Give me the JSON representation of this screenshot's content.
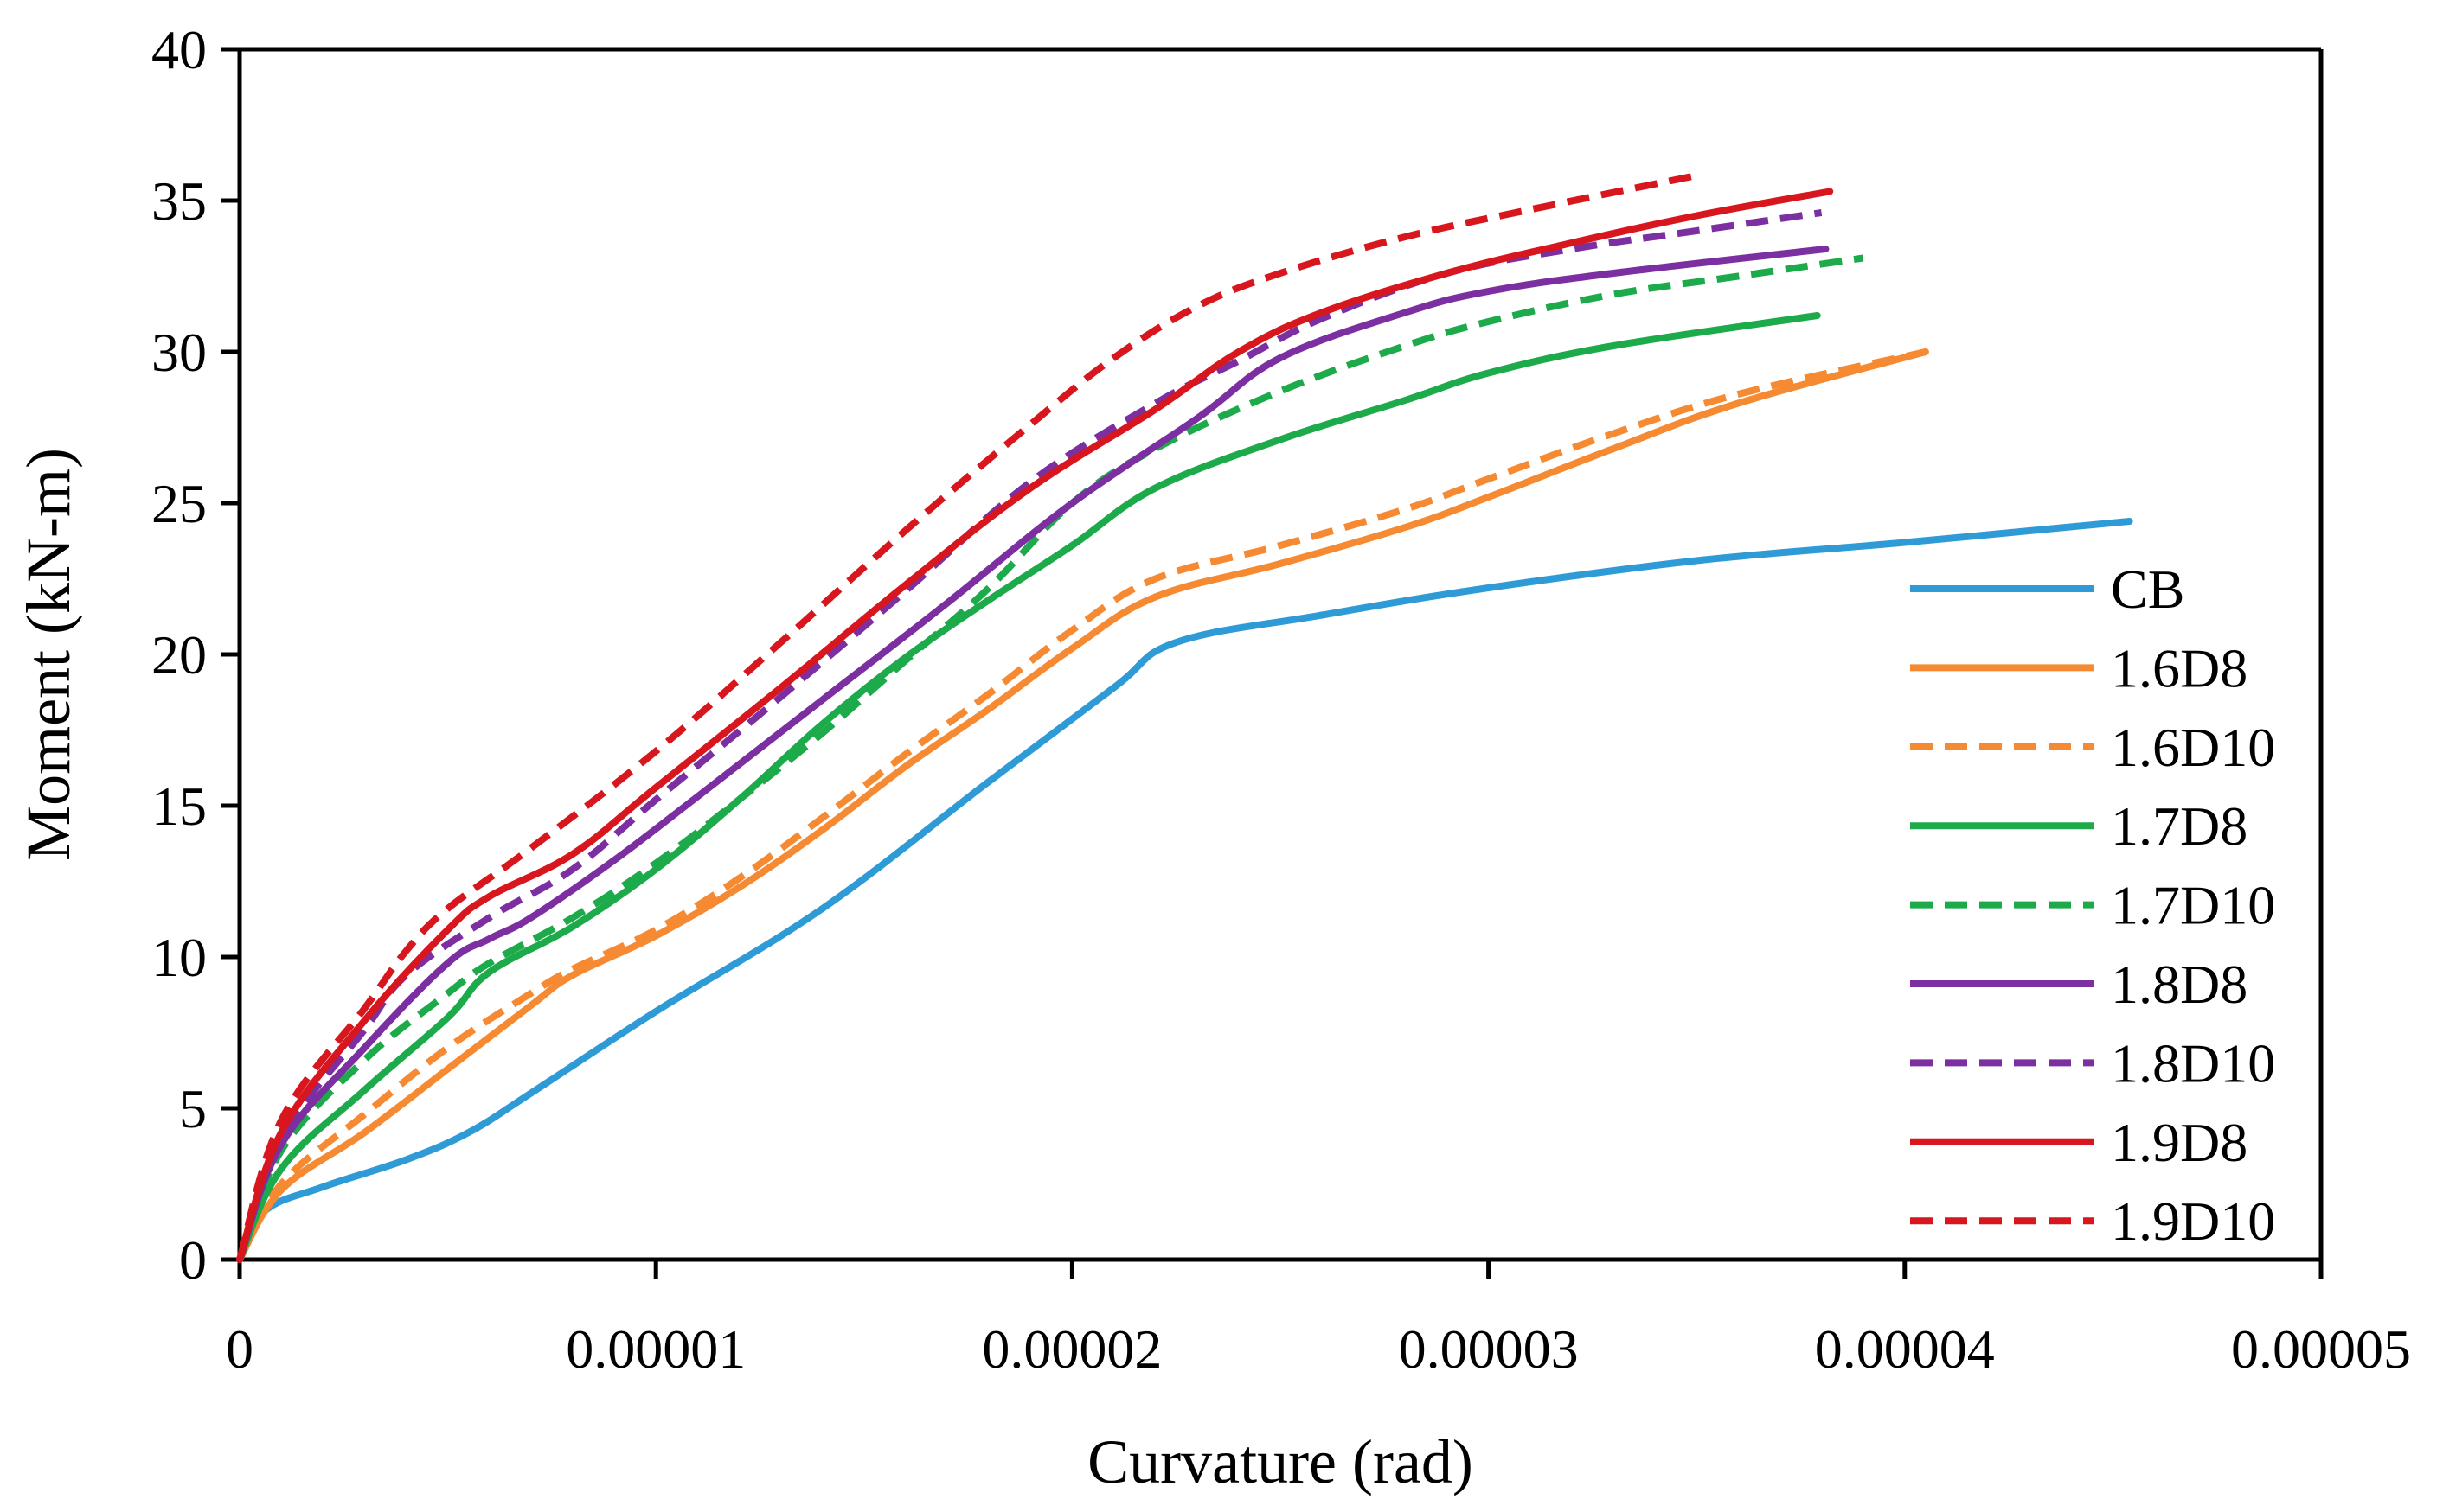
{
  "chart_data": {
    "type": "line",
    "title": "",
    "xlabel": "Curvature (rad)",
    "ylabel": "Moment (kN-m)",
    "xlim": [
      0,
      5e-05
    ],
    "ylim": [
      0,
      40
    ],
    "grid": false,
    "legend_position": "right",
    "x_ticks": [
      0,
      1e-05,
      2e-05,
      3e-05,
      4e-05,
      5e-05
    ],
    "x_tick_labels": [
      "0",
      "0.00001",
      "0.00002",
      "0.00003",
      "0.00004",
      "0.00005"
    ],
    "y_ticks": [
      0,
      5,
      10,
      15,
      20,
      25,
      30,
      35,
      40
    ],
    "y_tick_labels": [
      "0",
      "5",
      "10",
      "15",
      "20",
      "25",
      "30",
      "35",
      "40"
    ],
    "series": [
      {
        "name": "CB",
        "color": "#2E9BD6",
        "dashed": false,
        "x": [
          0,
          6e-07,
          2e-06,
          4e-06,
          5.5e-06,
          7e-06,
          1e-05,
          1.4e-05,
          1.8e-05,
          2.1e-05,
          2.25e-05,
          2.6e-05,
          3e-05,
          3.5e-05,
          4e-05,
          4.54e-05
        ],
        "y": [
          0,
          1.6,
          2.4,
          3.3,
          4.2,
          5.5,
          8.2,
          11.6,
          15.8,
          18.9,
          20.4,
          21.3,
          22.2,
          23.1,
          23.7,
          24.4
        ]
      },
      {
        "name": "1.6D8",
        "color": "#F58A33",
        "dashed": false,
        "x": [
          0,
          1e-06,
          3e-06,
          5e-06,
          7e-06,
          8e-06,
          1e-05,
          1.2e-05,
          1.4e-05,
          1.6e-05,
          1.8e-05,
          2e-05,
          2.2e-05,
          2.5e-05,
          2.8e-05,
          3e-05,
          3.3e-05,
          3.6e-05,
          4.05e-05
        ],
        "y": [
          0,
          2.3,
          4.2,
          6.3,
          8.4,
          9.4,
          10.7,
          12.3,
          14.2,
          16.3,
          18.2,
          20.2,
          21.9,
          23.0,
          24.2,
          25.2,
          26.8,
          28.3,
          30.0
        ]
      },
      {
        "name": "1.6D10",
        "color": "#F58A33",
        "dashed": true,
        "x": [
          0,
          1e-06,
          3e-06,
          5e-06,
          7e-06,
          8e-06,
          1e-05,
          1.2e-05,
          1.4e-05,
          1.6e-05,
          1.8e-05,
          2e-05,
          2.2e-05,
          2.5e-05,
          2.8e-05,
          3e-05,
          3.3e-05,
          3.6e-05,
          4.05e-05
        ],
        "y": [
          0,
          2.5,
          4.8,
          7.0,
          8.8,
          9.6,
          10.9,
          12.6,
          14.6,
          16.7,
          18.7,
          20.8,
          22.5,
          23.6,
          24.8,
          25.8,
          27.3,
          28.6,
          30.0
        ]
      },
      {
        "name": "1.7D8",
        "color": "#1DAA4B",
        "dashed": false,
        "x": [
          0,
          1e-06,
          3e-06,
          5e-06,
          6e-06,
          8e-06,
          1e-05,
          1.2e-05,
          1.4e-05,
          1.6e-05,
          1.8e-05,
          2e-05,
          2.2e-05,
          2.5e-05,
          2.8e-05,
          3e-05,
          3.3e-05,
          3.79e-05
        ],
        "y": [
          0,
          3.0,
          5.6,
          8.0,
          9.5,
          11.0,
          12.9,
          15.2,
          17.7,
          19.9,
          21.8,
          23.6,
          25.5,
          27.1,
          28.4,
          29.3,
          30.2,
          31.2
        ]
      },
      {
        "name": "1.7D10",
        "color": "#1DAA4B",
        "dashed": true,
        "x": [
          0,
          1e-06,
          3e-06,
          5e-06,
          6e-06,
          8e-06,
          1e-05,
          1.2e-05,
          1.4e-05,
          1.6e-05,
          1.8e-05,
          2e-05,
          2.2e-05,
          2.5e-05,
          2.8e-05,
          3e-05,
          3.3e-05,
          3.6e-05,
          3.9e-05
        ],
        "y": [
          0,
          3.6,
          6.6,
          8.8,
          9.8,
          11.3,
          13.1,
          15.2,
          17.4,
          19.8,
          22.2,
          25.0,
          26.8,
          28.7,
          30.2,
          31.0,
          31.9,
          32.5,
          33.1
        ]
      },
      {
        "name": "1.8D8",
        "color": "#7B2FA1",
        "dashed": false,
        "x": [
          0,
          1e-06,
          3e-06,
          5e-06,
          6e-06,
          7e-06,
          9e-06,
          1.1e-05,
          1.4e-05,
          1.7e-05,
          2e-05,
          2.3e-05,
          2.5e-05,
          2.8e-05,
          3e-05,
          3.3e-05,
          3.81e-05
        ],
        "y": [
          0,
          3.8,
          7.0,
          9.8,
          10.6,
          11.3,
          13.2,
          15.3,
          18.5,
          21.7,
          25.0,
          27.8,
          29.8,
          31.3,
          32.0,
          32.6,
          33.4
        ]
      },
      {
        "name": "1.8D10",
        "color": "#7B2FA1",
        "dashed": true,
        "x": [
          0,
          1e-06,
          3e-06,
          4e-06,
          6e-06,
          8e-06,
          1e-05,
          1.3e-05,
          1.6e-05,
          1.9e-05,
          2.2e-05,
          2.4e-05,
          2.6e-05,
          2.9e-05,
          3.2e-05,
          3.5e-05,
          3.8e-05
        ],
        "y": [
          0,
          4.0,
          7.6,
          9.4,
          11.3,
          12.9,
          15.2,
          18.6,
          22.1,
          25.7,
          28.3,
          29.7,
          31.1,
          32.6,
          33.4,
          34.0,
          34.6
        ]
      },
      {
        "name": "1.9D8",
        "color": "#D8161E",
        "dashed": false,
        "x": [
          0,
          1e-06,
          3e-06,
          5e-06,
          6e-06,
          8e-06,
          1e-05,
          1.3e-05,
          1.6e-05,
          1.9e-05,
          2.2e-05,
          2.4e-05,
          2.6e-05,
          2.9e-05,
          3.2e-05,
          3.5e-05,
          3.82e-05
        ],
        "y": [
          0,
          4.2,
          7.9,
          10.9,
          12.0,
          13.4,
          15.6,
          18.9,
          22.3,
          25.5,
          28.1,
          30.0,
          31.3,
          32.6,
          33.6,
          34.5,
          35.3
        ]
      },
      {
        "name": "1.9D10",
        "color": "#D8161E",
        "dashed": true,
        "x": [
          0,
          1e-06,
          3e-06,
          4e-06,
          5e-06,
          7e-06,
          1e-05,
          1.3e-05,
          1.6e-05,
          1.9e-05,
          2.1e-05,
          2.3e-05,
          2.5e-05,
          2.8e-05,
          3.1e-05,
          3.49e-05
        ],
        "y": [
          0,
          4.6,
          8.3,
          10.2,
          11.6,
          13.6,
          16.8,
          20.4,
          24.1,
          27.6,
          29.8,
          31.5,
          32.6,
          33.8,
          34.7,
          35.8
        ]
      }
    ]
  }
}
